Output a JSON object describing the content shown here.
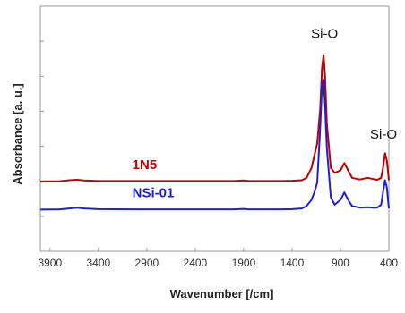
{
  "chart_data": {
    "type": "line",
    "title": "",
    "xlabel": "Wavenumber [/cm]",
    "ylabel": "Absorbance [a. u.]",
    "xlim": [
      4000,
      400
    ],
    "ylim": [
      0,
      1
    ],
    "x_reversed": true,
    "grid": false,
    "y_tick_labels_shown": false,
    "x_ticks": [
      3900,
      3400,
      2900,
      2400,
      1900,
      1400,
      900,
      400
    ],
    "x_tick_labels": [
      "3900",
      "3400",
      "2900",
      "2400",
      "1900",
      "1400",
      "900",
      "400"
    ],
    "y_tick_count": 7,
    "series": [
      {
        "name": "1N5",
        "color": "#c00000",
        "x": [
          4000,
          3800,
          3700,
          3620,
          3550,
          3400,
          3000,
          2500,
          2000,
          1900,
          1850,
          1700,
          1500,
          1400,
          1300,
          1250,
          1200,
          1170,
          1140,
          1110,
          1090,
          1075,
          1060,
          1040,
          1000,
          960,
          900,
          860,
          820,
          780,
          700,
          620,
          560,
          520,
          480,
          460,
          440,
          420,
          400
        ],
        "values": [
          0.285,
          0.286,
          0.29,
          0.292,
          0.289,
          0.287,
          0.287,
          0.287,
          0.287,
          0.289,
          0.287,
          0.287,
          0.287,
          0.288,
          0.29,
          0.3,
          0.34,
          0.39,
          0.44,
          0.58,
          0.75,
          0.8,
          0.72,
          0.52,
          0.34,
          0.32,
          0.33,
          0.36,
          0.33,
          0.3,
          0.293,
          0.3,
          0.295,
          0.292,
          0.3,
          0.34,
          0.4,
          0.37,
          0.29
        ]
      },
      {
        "name": "NSi-01",
        "color": "#1f1fd6",
        "x": [
          4000,
          3800,
          3700,
          3620,
          3550,
          3400,
          3000,
          2500,
          2000,
          1900,
          1850,
          1700,
          1500,
          1400,
          1300,
          1250,
          1200,
          1170,
          1140,
          1110,
          1090,
          1075,
          1060,
          1040,
          1000,
          960,
          900,
          860,
          820,
          780,
          700,
          620,
          560,
          520,
          480,
          460,
          440,
          420,
          400
        ],
        "values": [
          0.17,
          0.171,
          0.175,
          0.178,
          0.175,
          0.172,
          0.171,
          0.171,
          0.171,
          0.173,
          0.171,
          0.171,
          0.171,
          0.172,
          0.175,
          0.185,
          0.21,
          0.24,
          0.28,
          0.5,
          0.68,
          0.7,
          0.6,
          0.42,
          0.22,
          0.19,
          0.21,
          0.24,
          0.21,
          0.185,
          0.178,
          0.18,
          0.178,
          0.178,
          0.19,
          0.24,
          0.29,
          0.26,
          0.175
        ]
      }
    ],
    "series_labels": [
      {
        "text": "1N5",
        "x": 3050,
        "y": 0.335,
        "color": "#c00000"
      },
      {
        "text": "NSi-01",
        "x": 3050,
        "y": 0.22,
        "color": "#1f1fd6"
      }
    ],
    "annotations": [
      {
        "text": "Si-O",
        "x": 1065,
        "y": 0.87
      },
      {
        "text": "Si-O",
        "x": 455,
        "y": 0.46
      }
    ]
  }
}
